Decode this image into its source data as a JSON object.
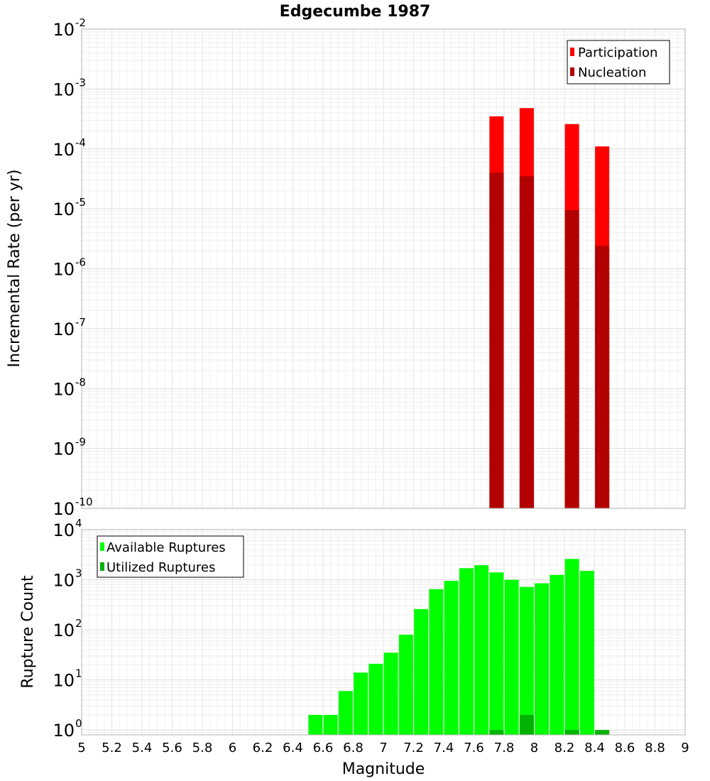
{
  "title": "Edgecumbe 1987",
  "chart_data": [
    {
      "type": "bar",
      "ylabel": "Incremental Rate (per yr)",
      "yscale": "log",
      "ylim": [
        1e-10,
        0.01
      ],
      "xlim": [
        5,
        9
      ],
      "grid": true,
      "legend_position": "top-right",
      "ytick_exponents": [
        "-10",
        "-9",
        "-8",
        "-7",
        "-6",
        "-5",
        "-4",
        "-3",
        "-2"
      ],
      "series": [
        {
          "name": "Participation",
          "color": "#ff0000",
          "x": [
            7.75,
            7.95,
            8.25,
            8.45
          ],
          "values": [
            0.00035,
            0.00048,
            0.00026,
            0.00011
          ]
        },
        {
          "name": "Nucleation",
          "color": "#b30000",
          "x": [
            7.75,
            7.95,
            8.25,
            8.45
          ],
          "values": [
            4e-05,
            3.5e-05,
            9.5e-06,
            2.4e-06
          ]
        }
      ]
    },
    {
      "type": "bar",
      "ylabel": "Rupture Count",
      "xlabel": "Magnitude",
      "yscale": "log",
      "ylim": [
        0.8,
        10000
      ],
      "xlim": [
        5,
        9
      ],
      "grid": true,
      "legend_position": "top-left",
      "ytick_exponents": [
        "0",
        "1",
        "2",
        "3",
        "4"
      ],
      "xticks": [
        "5",
        "5.2",
        "5.4",
        "5.6",
        "5.8",
        "6",
        "6.2",
        "6.4",
        "6.6",
        "6.8",
        "7",
        "7.2",
        "7.4",
        "7.6",
        "7.8",
        "8",
        "8.2",
        "8.4",
        "8.6",
        "8.8",
        "9"
      ],
      "series": [
        {
          "name": "Available Ruptures",
          "color": "#00ff00",
          "x": [
            6.55,
            6.65,
            6.75,
            6.85,
            6.95,
            7.05,
            7.15,
            7.25,
            7.35,
            7.45,
            7.55,
            7.65,
            7.75,
            7.85,
            7.95,
            8.05,
            8.15,
            8.25,
            8.35
          ],
          "values": [
            2,
            2,
            6,
            14,
            21,
            35,
            80,
            260,
            650,
            950,
            1700,
            1950,
            1400,
            1000,
            720,
            850,
            1250,
            2600,
            1500
          ]
        },
        {
          "name": "Utilized Ruptures",
          "color": "#00b300",
          "x": [
            7.75,
            7.95,
            8.25,
            8.45
          ],
          "values": [
            1,
            2,
            1,
            1
          ]
        }
      ]
    }
  ]
}
